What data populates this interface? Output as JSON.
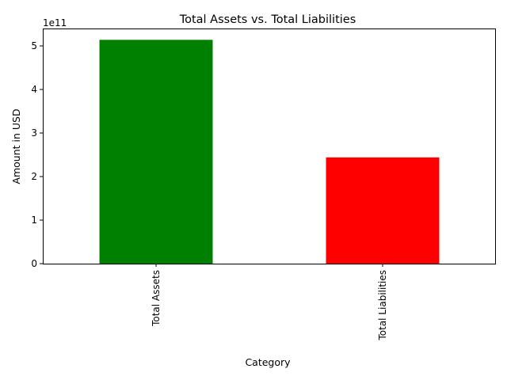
{
  "chart_data": {
    "type": "bar",
    "title": "Total Assets vs. Total Liabilities",
    "xlabel": "Category",
    "ylabel": "Amount in USD",
    "y_offset_label": "1e11",
    "y_scale": 100000000000,
    "categories": [
      "Total Assets",
      "Total Liabilities"
    ],
    "values": [
      514000000000,
      244000000000
    ],
    "bar_colors": [
      "#008000",
      "#ff0000"
    ],
    "ylim": [
      0,
      540000000000
    ],
    "y_ticks": [
      0,
      100000000000,
      200000000000,
      300000000000,
      400000000000,
      500000000000
    ],
    "y_tick_labels": [
      "0",
      "1",
      "2",
      "3",
      "4",
      "5"
    ],
    "grid": false,
    "legend": "none"
  }
}
